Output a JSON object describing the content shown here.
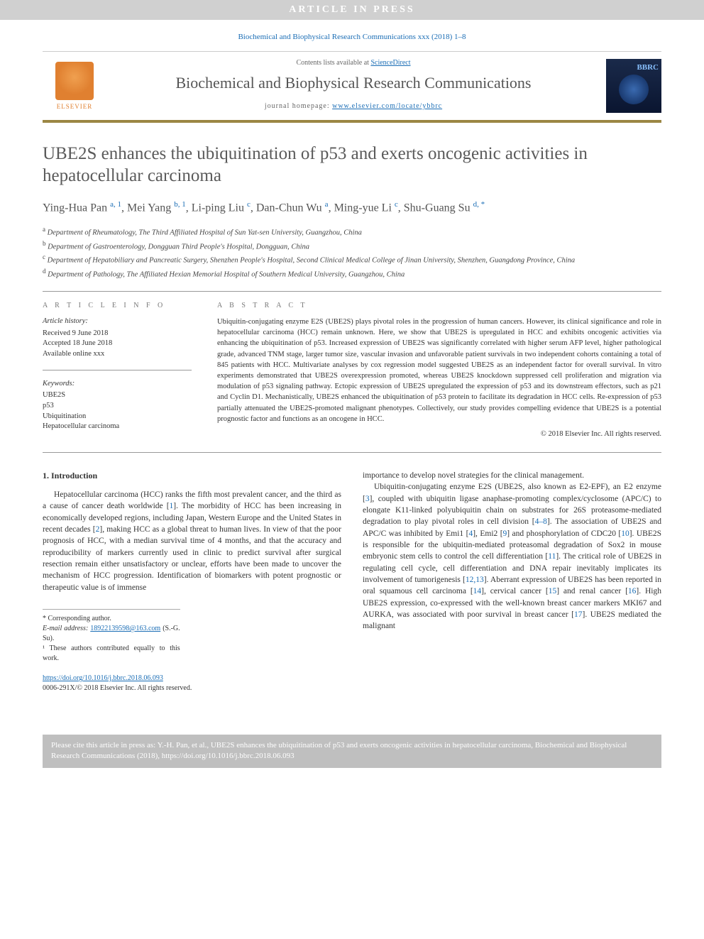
{
  "banner": "ARTICLE IN PRESS",
  "citation_line": "Biochemical and Biophysical Research Communications xxx (2018) 1–8",
  "header": {
    "contents_prefix": "Contents lists available at ",
    "contents_link": "ScienceDirect",
    "journal": "Biochemical and Biophysical Research Communications",
    "homepage_prefix": "journal homepage: ",
    "homepage_url": "www.elsevier.com/locate/ybbrc",
    "publisher_label": "ELSEVIER",
    "cover_abbrev": "BBRC"
  },
  "title": "UBE2S enhances the ubiquitination of p53 and exerts oncogenic activities in hepatocellular carcinoma",
  "authors_html": "Ying-Hua Pan <sup>a, 1</sup>, Mei Yang <sup>b, 1</sup>, Li-ping Liu <sup>c</sup>, Dan-Chun Wu <sup>a</sup>, Ming-yue Li <sup>c</sup>, Shu-Guang Su <sup>d, *</sup>",
  "affiliations": [
    {
      "sup": "a",
      "text": "Department of Rheumatology, The Third Affiliated Hospital of Sun Yat-sen University, Guangzhou, China"
    },
    {
      "sup": "b",
      "text": "Department of Gastroenterology, Dongguan Third People's Hospital, Dongguan, China"
    },
    {
      "sup": "c",
      "text": "Department of Hepatobiliary and Pancreatic Surgery, Shenzhen People's Hospital, Second Clinical Medical College of Jinan University, Shenzhen, Guangdong Province, China"
    },
    {
      "sup": "d",
      "text": "Department of Pathology, The Affiliated Hexian Memorial Hospital of Southern Medical University, Guangzhou, China"
    }
  ],
  "info": {
    "heading": "A R T I C L E  I N F O",
    "history_label": "Article history:",
    "received": "Received 9 June 2018",
    "accepted": "Accepted 18 June 2018",
    "online": "Available online xxx",
    "keywords_label": "Keywords:",
    "keywords": [
      "UBE2S",
      "p53",
      "Ubiquitination",
      "Hepatocellular carcinoma"
    ]
  },
  "abstract": {
    "heading": "A B S T R A C T",
    "body": "Ubiquitin-conjugating enzyme E2S (UBE2S) plays pivotal roles in the progression of human cancers. However, its clinical significance and role in hepatocellular carcinoma (HCC) remain unknown. Here, we show that UBE2S is upregulated in HCC and exhibits oncogenic activities via enhancing the ubiquitination of p53. Increased expression of UBE2S was significantly correlated with higher serum AFP level, higher pathological grade, advanced TNM stage, larger tumor size, vascular invasion and unfavorable patient survivals in two independent cohorts containing a total of 845 patients with HCC. Multivariate analyses by cox regression model suggested UBE2S as an independent factor for overall survival. In vitro experiments demonstrated that UBE2S overexpression promoted, whereas UBE2S knockdown suppressed cell proliferation and migration via modulation of p53 signaling pathway. Ectopic expression of UBE2S upregulated the expression of p53 and its downstream effectors, such as p21 and Cyclin D1. Mechanistically, UBE2S enhanced the ubiquitination of p53 protein to facilitate its degradation in HCC cells. Re-expression of p53 partially attenuated the UBE2S-promoted malignant phenotypes. Collectively, our study provides compelling evidence that UBE2S is a potential prognostic factor and functions as an oncogene in HCC.",
    "copyright": "© 2018 Elsevier Inc. All rights reserved."
  },
  "section1": {
    "heading": "1. Introduction",
    "col1": "Hepatocellular carcinoma (HCC) ranks the fifth most prevalent cancer, and the third as a cause of cancer death worldwide [1]. The morbidity of HCC has been increasing in economically developed regions, including Japan, Western Europe and the United States in recent decades [2], making HCC as a global threat to human lives. In view of that the poor prognosis of HCC, with a median survival time of 4 months, and that the accuracy and reproducibility of markers currently used in clinic to predict survival after surgical resection remain either unsatisfactory or unclear, efforts have been made to uncover the mechanism of HCC progression. Identification of biomarkers with potent prognostic or therapeutic value is of immense",
    "col2a": "importance to develop novel strategies for the clinical management.",
    "col2b": "Ubiquitin-conjugating enzyme E2S (UBE2S, also known as E2-EPF), an E2 enzyme [3], coupled with ubiquitin ligase anaphase-promoting complex/cyclosome (APC/C) to elongate K11-linked polyubiquitin chain on substrates for 26S proteasome-mediated degradation to play pivotal roles in cell division [4–8]. The association of UBE2S and APC/C was inhibited by Emi1 [4], Emi2 [9] and phosphorylation of CDC20 [10]. UBE2S is responsible for the ubiquitin-mediated proteasomal degradation of Sox2 in mouse embryonic stem cells to control the cell differentiation [11]. The critical role of UBE2S in regulating cell cycle, cell differentiation and DNA repair inevitably implicates its involvement of tumorigenesis [12,13]. Aberrant expression of UBE2S has been reported in oral squamous cell carcinoma [14], cervical cancer [15] and renal cancer [16]. High UBE2S expression, co-expressed with the well-known breast cancer markers MKI67 and AURKA, was associated with poor survival in breast cancer [17]. UBE2S mediated the malignant"
  },
  "footnotes": {
    "corr": "* Corresponding author.",
    "email_label": "E-mail address: ",
    "email": "18922139598@163.com",
    "email_who": " (S.-G. Su).",
    "equal": "¹ These authors contributed equally to this work."
  },
  "doi": {
    "url": "https://doi.org/10.1016/j.bbrc.2018.06.093",
    "rights": "0006-291X/© 2018 Elsevier Inc. All rights reserved."
  },
  "citebox": "Please cite this article in press as: Y.-H. Pan, et al., UBE2S enhances the ubiquitination of p53 and exerts oncogenic activities in hepatocellular carcinoma, Biochemical and Biophysical Research Communications (2018), https://doi.org/10.1016/j.bbrc.2018.06.093",
  "colors": {
    "link": "#1a6db5",
    "accent_border": "#9b8744",
    "banner_bg": "#d0d0d0",
    "citebox_bg": "#bfbfbf",
    "elsevier_orange": "#e08030"
  }
}
